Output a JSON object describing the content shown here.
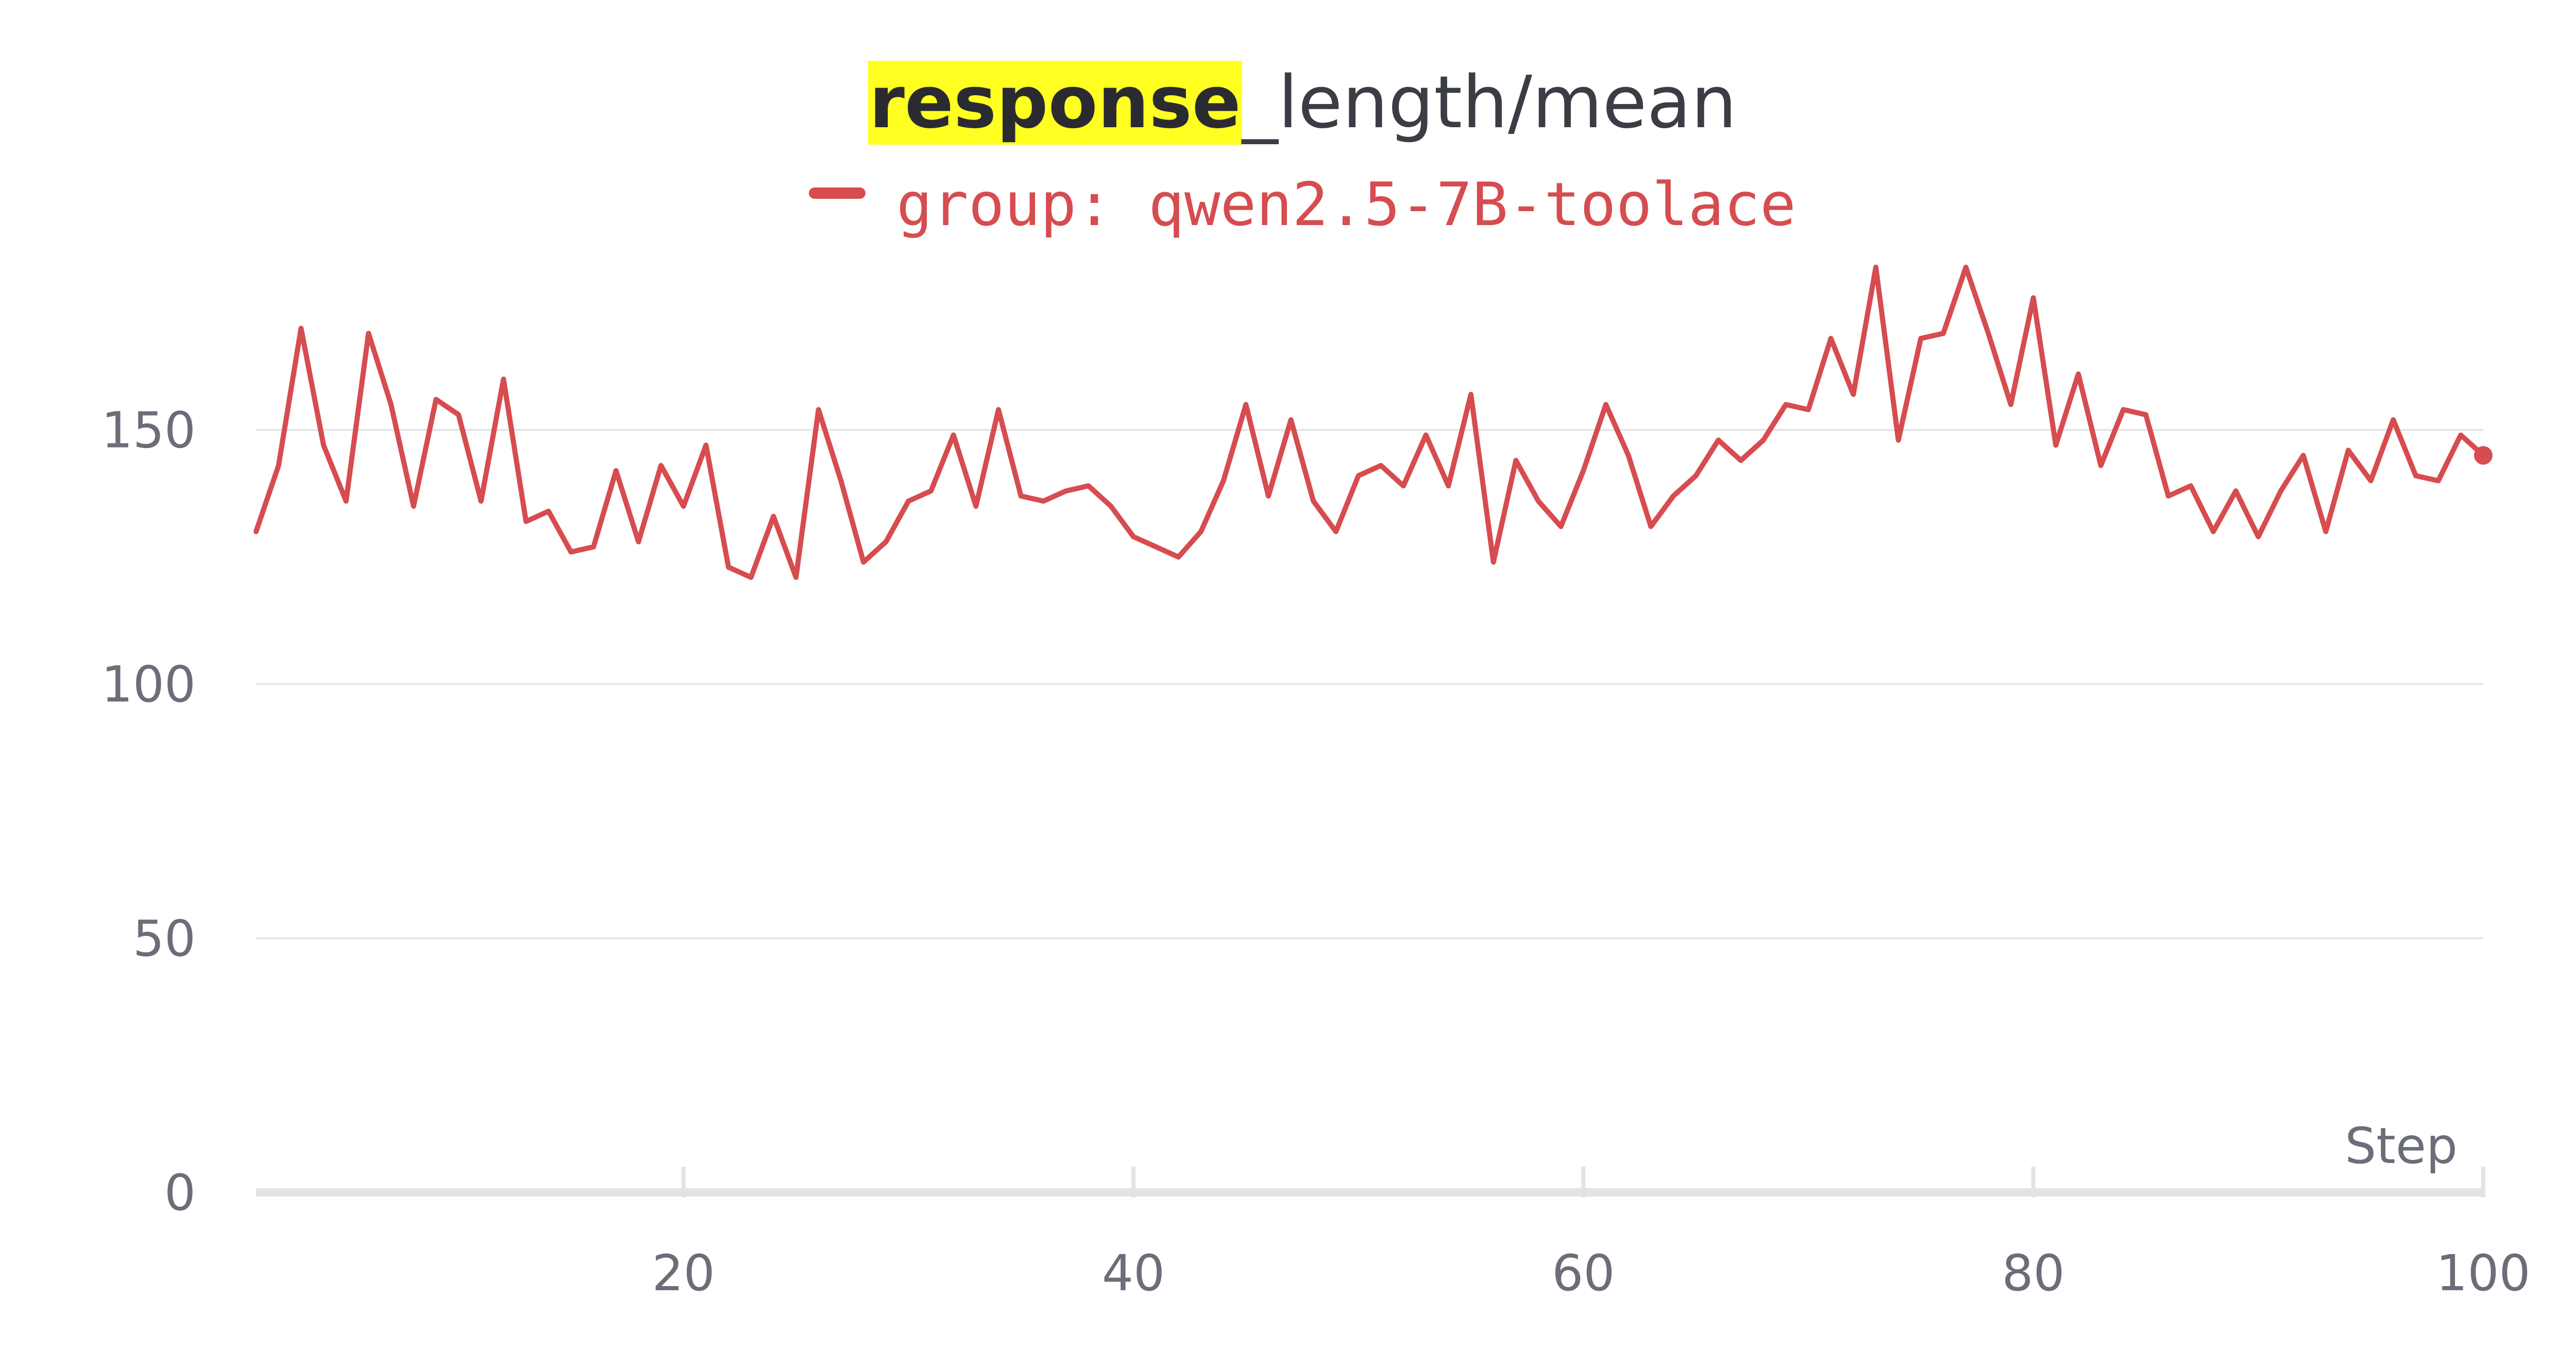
{
  "chart_data": {
    "type": "line",
    "title_highlight": "response",
    "title_rest": "_length/mean",
    "xlabel": "Step",
    "ylabel": "",
    "xlim": [
      1,
      100
    ],
    "ylim": [
      0,
      190
    ],
    "x_ticks": [
      20,
      40,
      60,
      80,
      100
    ],
    "y_ticks": [
      0,
      50,
      100,
      150
    ],
    "grid": true,
    "legend_position": "top-center",
    "series": [
      {
        "name": "group: qwen2.5-7B-toolace",
        "color": "#d64c4f",
        "x": [
          1,
          2,
          3,
          4,
          5,
          6,
          7,
          8,
          9,
          10,
          11,
          12,
          13,
          14,
          15,
          16,
          17,
          18,
          19,
          20,
          21,
          22,
          23,
          24,
          25,
          26,
          27,
          28,
          29,
          30,
          31,
          32,
          33,
          34,
          35,
          36,
          37,
          38,
          39,
          40,
          41,
          42,
          43,
          44,
          45,
          46,
          47,
          48,
          49,
          50,
          51,
          52,
          53,
          54,
          55,
          56,
          57,
          58,
          59,
          60,
          61,
          62,
          63,
          64,
          65,
          66,
          67,
          68,
          69,
          70,
          71,
          72,
          73,
          74,
          75,
          76,
          77,
          78,
          79,
          80,
          81,
          82,
          83,
          84,
          85,
          86,
          87,
          88,
          89,
          90,
          91,
          92,
          93,
          94,
          95,
          96,
          97,
          98,
          99,
          100
        ],
        "y": [
          130,
          143,
          170,
          147,
          136,
          169,
          155,
          135,
          156,
          153,
          136,
          160,
          132,
          134,
          126,
          127,
          142,
          128,
          143,
          135,
          147,
          123,
          121,
          133,
          121,
          154,
          140,
          124,
          128,
          136,
          138,
          149,
          135,
          154,
          137,
          136,
          138,
          139,
          135,
          129,
          127,
          125,
          130,
          140,
          155,
          137,
          152,
          136,
          130,
          141,
          143,
          139,
          149,
          139,
          157,
          124,
          144,
          136,
          131,
          142,
          155,
          145,
          131,
          137,
          141,
          148,
          144,
          148,
          155,
          154,
          168,
          157,
          182,
          148,
          168,
          169,
          182,
          169,
          155,
          176,
          147,
          161,
          143,
          154,
          153,
          137,
          139,
          130,
          138,
          129,
          138,
          145,
          130,
          146,
          140,
          152,
          141,
          140,
          149,
          145
        ]
      }
    ]
  }
}
